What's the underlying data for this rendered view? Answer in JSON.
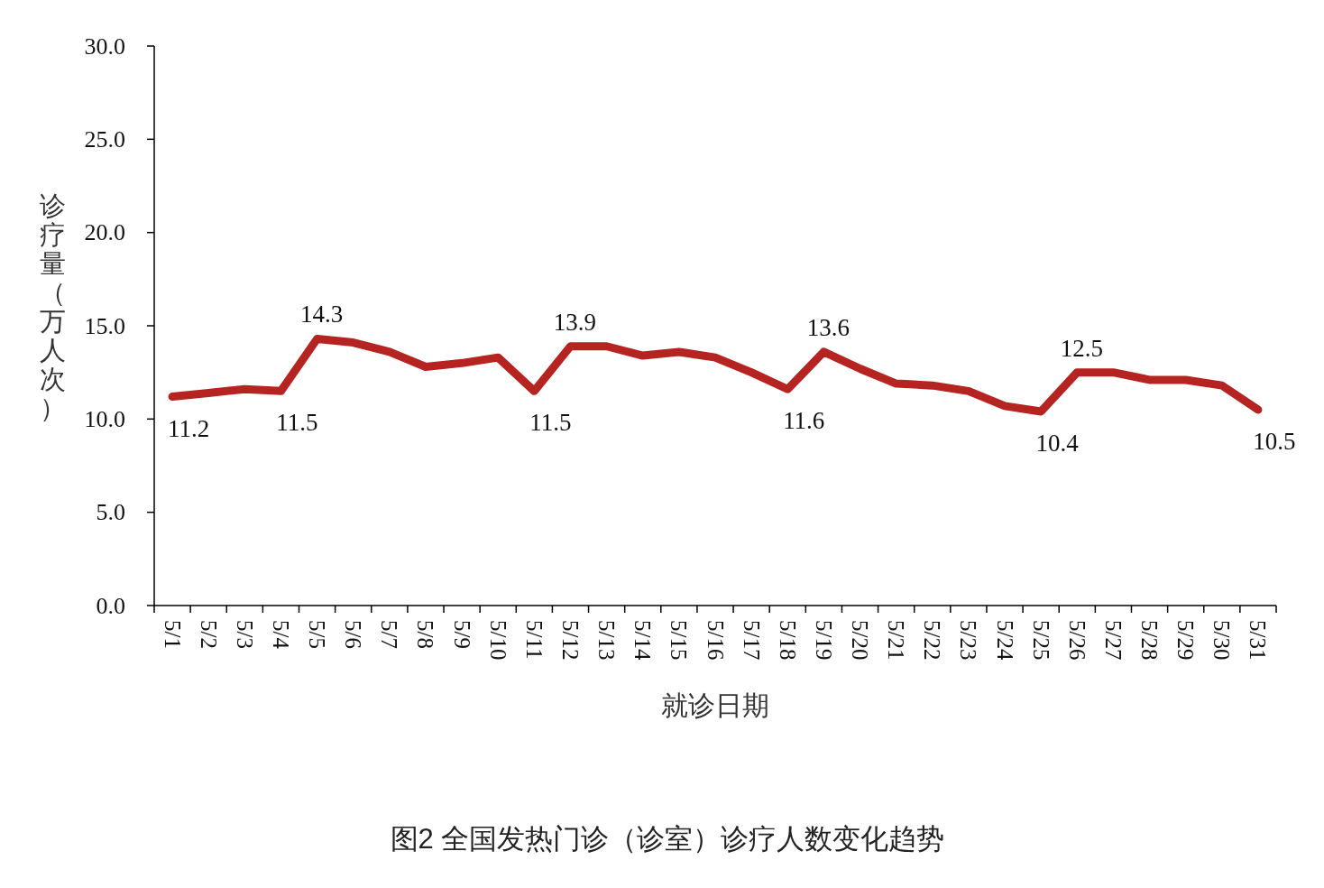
{
  "chart_data": {
    "type": "line",
    "title": "图2 全国发热门诊（诊室）诊疗人数变化趋势",
    "xlabel": "就诊日期",
    "ylabel": "诊疗量（万人次）",
    "categories": [
      "5/1",
      "5/2",
      "5/3",
      "5/4",
      "5/5",
      "5/6",
      "5/7",
      "5/8",
      "5/9",
      "5/10",
      "5/11",
      "5/12",
      "5/13",
      "5/14",
      "5/15",
      "5/16",
      "5/17",
      "5/18",
      "5/19",
      "5/20",
      "5/21",
      "5/22",
      "5/23",
      "5/24",
      "5/25",
      "5/26",
      "5/27",
      "5/28",
      "5/29",
      "5/30",
      "5/31"
    ],
    "series": [
      {
        "color": "#b52421",
        "values": [
          11.2,
          11.4,
          11.6,
          11.5,
          14.3,
          14.1,
          13.6,
          12.8,
          13.0,
          13.3,
          11.5,
          13.9,
          13.9,
          13.4,
          13.6,
          13.3,
          12.5,
          11.6,
          13.6,
          12.7,
          11.9,
          11.8,
          11.5,
          10.7,
          10.4,
          12.5,
          12.5,
          12.1,
          12.1,
          11.8,
          10.5
        ],
        "value_labels": [
          "11.2",
          null,
          null,
          "11.5",
          "14.3",
          null,
          null,
          null,
          null,
          null,
          "11.5",
          "13.9",
          null,
          null,
          null,
          null,
          null,
          "11.6",
          "13.6",
          null,
          null,
          null,
          null,
          null,
          "10.4",
          "12.5",
          null,
          null,
          null,
          null,
          "10.5"
        ]
      }
    ],
    "ylim": [
      0,
      30
    ],
    "yticks": [
      {
        "value": 0,
        "label": "0.0"
      },
      {
        "value": 5,
        "label": "5.0"
      },
      {
        "value": 10,
        "label": "10.0"
      },
      {
        "value": 15,
        "label": "15.0"
      },
      {
        "value": 20,
        "label": "20.0"
      },
      {
        "value": 25,
        "label": "25.0"
      },
      {
        "value": 30,
        "label": "30.0"
      }
    ],
    "grid": false,
    "marker": "none",
    "line_style": "solid"
  }
}
